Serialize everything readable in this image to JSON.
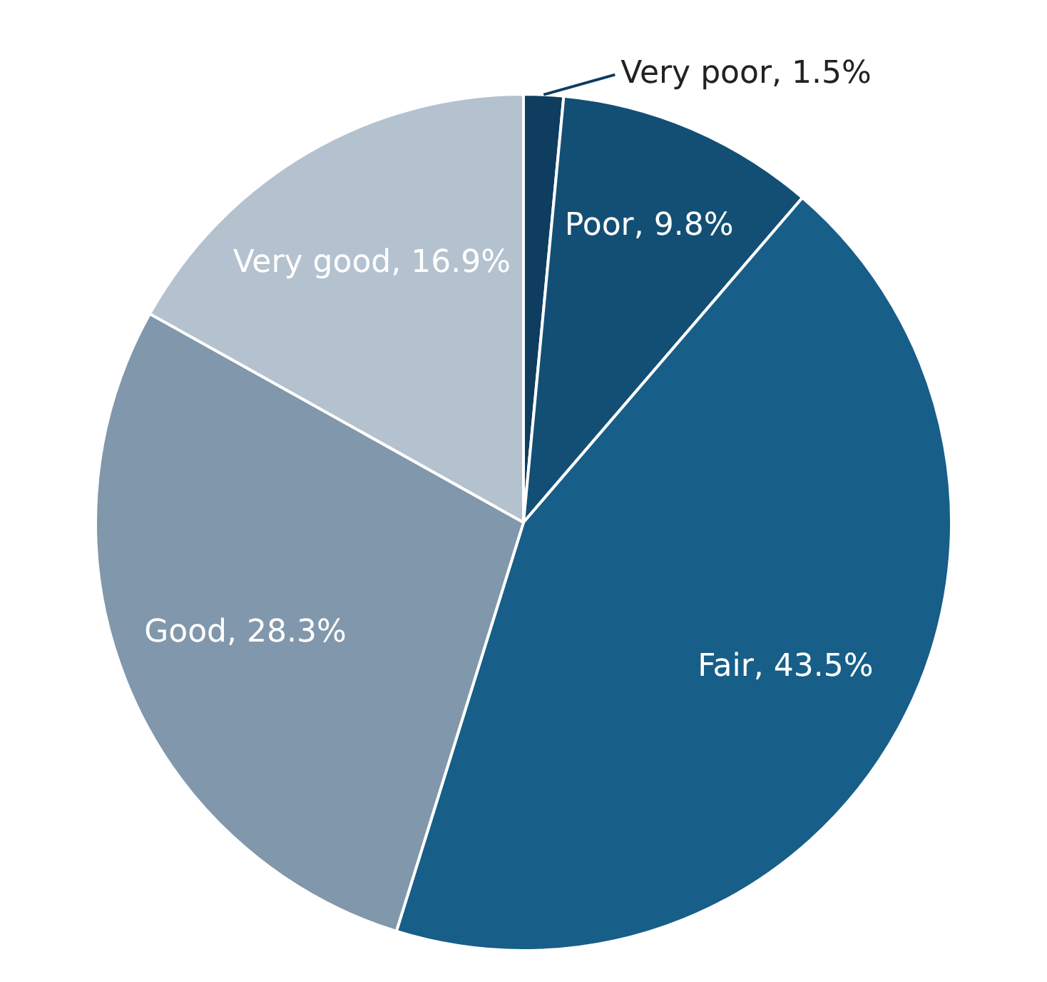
{
  "chart_data": {
    "type": "pie",
    "categories": [
      "Very poor",
      "Poor",
      "Fair",
      "Good",
      "Very good"
    ],
    "values": [
      1.5,
      9.8,
      43.5,
      28.3,
      16.9
    ],
    "colors": [
      "#0e3d60",
      "#134f74",
      "#175e88",
      "#8197ab",
      "#b4c1cf"
    ],
    "value_labels": [
      "1.5%",
      "9.8%",
      "43.5%",
      "28.3%",
      "16.9%"
    ],
    "legend": false
  }
}
